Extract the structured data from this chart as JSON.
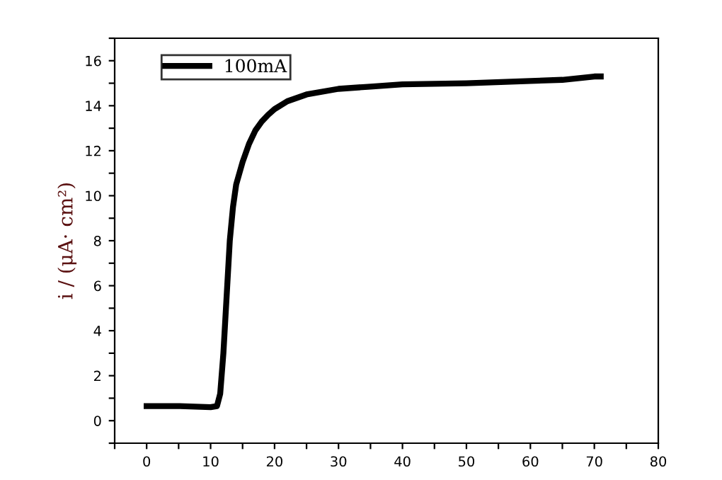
{
  "chart_data": {
    "type": "line",
    "ylabel": "i / (μA· cm²)",
    "xlim": [
      -5,
      80
    ],
    "xticks": [
      {
        "value": -5,
        "label": null
      },
      0,
      {
        "value": 5,
        "label": null
      },
      10,
      {
        "value": 15,
        "label": null
      },
      20,
      {
        "value": 25,
        "label": null
      },
      30,
      {
        "value": 35,
        "label": null
      },
      40,
      {
        "value": 45,
        "label": null
      },
      50,
      {
        "value": 55,
        "label": null
      },
      60,
      {
        "value": 65,
        "label": null
      },
      70,
      {
        "value": 75,
        "label": null
      },
      80
    ],
    "ylim": [
      -1,
      17
    ],
    "yticks": [
      {
        "value": -1,
        "label": null
      },
      0,
      {
        "value": 1,
        "label": null
      },
      2,
      {
        "value": 3,
        "label": null
      },
      4,
      {
        "value": 5,
        "label": null
      },
      6,
      {
        "value": 7,
        "label": null
      },
      8,
      {
        "value": 9,
        "label": null
      },
      10,
      {
        "value": 11,
        "label": null
      },
      12,
      {
        "value": 13,
        "label": null
      },
      14,
      {
        "value": 15,
        "label": null
      },
      16,
      {
        "value": 17,
        "label": null
      }
    ],
    "grid": false,
    "legend": "top left",
    "marker": "none",
    "line_style": "solid",
    "x": [
      0,
      5,
      10,
      11,
      11.5,
      12,
      12.5,
      13,
      13.5,
      14,
      15,
      16,
      17,
      18,
      19,
      20,
      22,
      25,
      30,
      35,
      40,
      50,
      60,
      65,
      70,
      71
    ],
    "series": [
      {
        "name": "100mA",
        "color": "#000000",
        "values": [
          0.65,
          0.65,
          0.6,
          0.65,
          1.2,
          3,
          5.5,
          8,
          9.5,
          10.5,
          11.5,
          12.3,
          12.9,
          13.3,
          13.6,
          13.85,
          14.2,
          14.5,
          14.75,
          14.85,
          14.95,
          15.0,
          15.1,
          15.15,
          15.3,
          15.3
        ]
      }
    ]
  }
}
